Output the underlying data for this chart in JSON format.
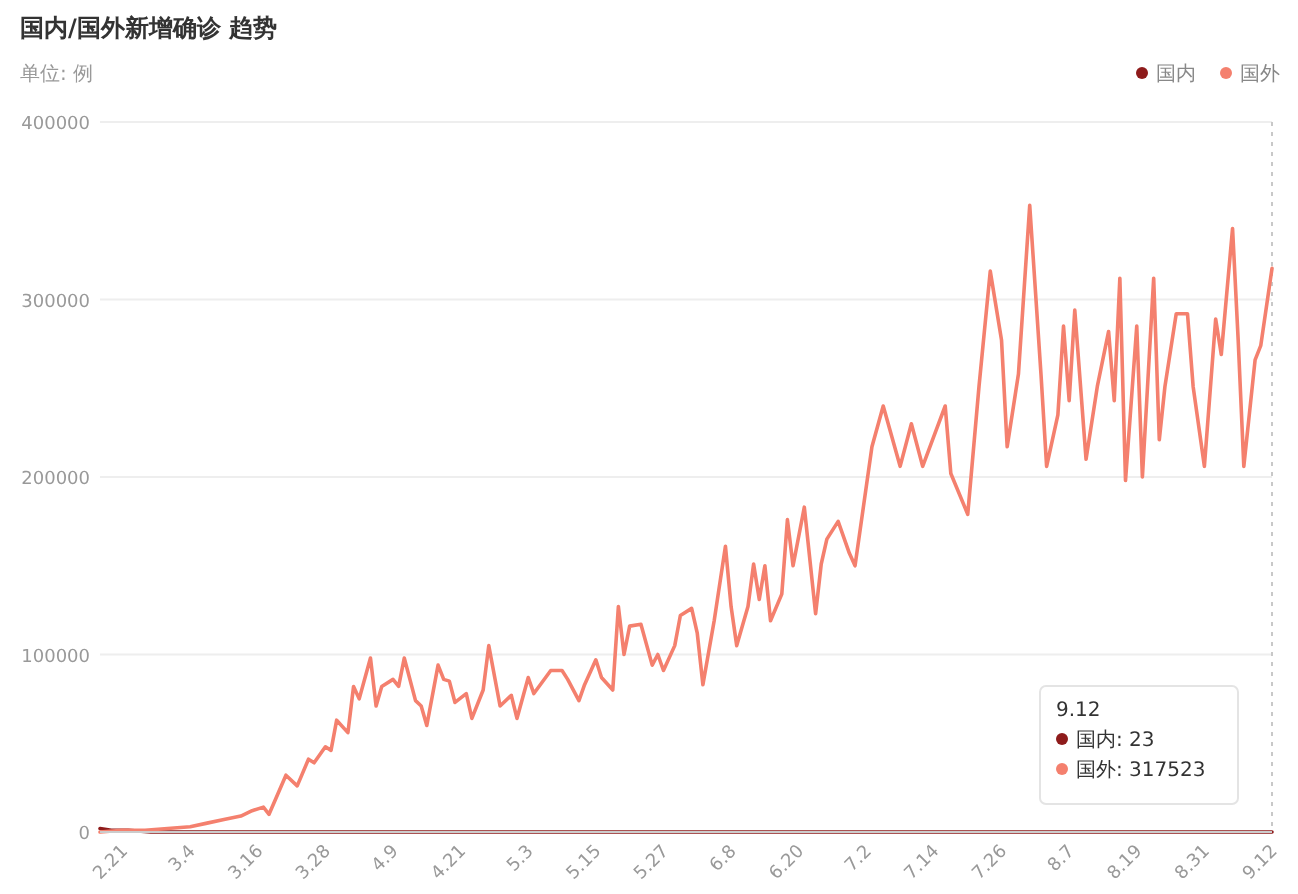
{
  "chart_data": {
    "type": "line",
    "title": "国内/国外新增确诊 趋势",
    "ylabel": "单位: 例",
    "xlim": [
      "--02-17",
      "--09-12"
    ],
    "ylim": [
      0,
      400000
    ],
    "yticks": [
      0,
      100000,
      200000,
      300000,
      400000
    ],
    "xticks": [
      {
        "value": "--02-21",
        "label": "2.21"
      },
      {
        "value": "--03-04",
        "label": "3.4"
      },
      {
        "value": "--03-16",
        "label": "3.16"
      },
      {
        "value": "--03-28",
        "label": "3.28"
      },
      {
        "value": "--04-09",
        "label": "4.9"
      },
      {
        "value": "--04-21",
        "label": "4.21"
      },
      {
        "value": "--05-03",
        "label": "5.3"
      },
      {
        "value": "--05-15",
        "label": "5.15"
      },
      {
        "value": "--05-27",
        "label": "5.27"
      },
      {
        "value": "--06-08",
        "label": "6.8"
      },
      {
        "value": "--06-20",
        "label": "6.20"
      },
      {
        "value": "--07-02",
        "label": "7.2"
      },
      {
        "value": "--07-14",
        "label": "7.14"
      },
      {
        "value": "--07-26",
        "label": "7.26"
      },
      {
        "value": "--08-07",
        "label": "8.7"
      },
      {
        "value": "--08-19",
        "label": "8.19"
      },
      {
        "value": "--08-31",
        "label": "8.31"
      },
      {
        "value": "--09-12",
        "label": "9.12"
      }
    ],
    "grid": "y",
    "legend": "top right",
    "ref_lines": [
      {
        "axis": "x",
        "value": "--09-12",
        "color": "#c8c8c8",
        "line_style": "dotted"
      }
    ],
    "annotations": [
      "9.12",
      "国内: 23",
      "国外: 317523"
    ],
    "series": [
      {
        "name": "国内",
        "color": "#8e1b1b",
        "x": [
          "--02-17",
          "--02-19",
          "--02-22",
          "--02-26",
          "--03-01",
          "--03-08",
          "--04-01",
          "--05-01",
          "--06-01",
          "--07-01",
          "--07-26",
          "--08-01",
          "--09-01",
          "--09-12"
        ],
        "values": [
          2000,
          1000,
          1000,
          0,
          0,
          0,
          0,
          0,
          0,
          0,
          0,
          0,
          0,
          23
        ]
      },
      {
        "name": "国外",
        "color": "#f4806e",
        "x": [
          "--02-17",
          "--02-21",
          "--02-25",
          "--02-29",
          "--03-04",
          "--03-07",
          "--03-10",
          "--03-13",
          "--03-15",
          "--03-17",
          "--03-18",
          "--03-21",
          "--03-23",
          "--03-25",
          "--03-26",
          "--03-28",
          "--03-29",
          "--03-30",
          "--04-01",
          "--04-02",
          "--04-03",
          "--04-05",
          "--04-06",
          "--04-07",
          "--04-09",
          "--04-10",
          "--04-11",
          "--04-13",
          "--04-14",
          "--04-15",
          "--04-17",
          "--04-18",
          "--04-19",
          "--04-20",
          "--04-22",
          "--04-23",
          "--04-25",
          "--04-26",
          "--04-28",
          "--04-30",
          "--05-01",
          "--05-03",
          "--05-04",
          "--05-07",
          "--05-09",
          "--05-10",
          "--05-12",
          "--05-13",
          "--05-15",
          "--05-16",
          "--05-18",
          "--05-19",
          "--05-20",
          "--05-21",
          "--05-23",
          "--05-25",
          "--05-26",
          "--05-27",
          "--05-29",
          "--05-30",
          "--06-01",
          "--06-02",
          "--06-03",
          "--06-05",
          "--06-07",
          "--06-08",
          "--06-09",
          "--06-11",
          "--06-12",
          "--06-13",
          "--06-14",
          "--06-15",
          "--06-17",
          "--06-18",
          "--06-19",
          "--06-21",
          "--06-23",
          "--06-24",
          "--06-25",
          "--06-27",
          "--06-29",
          "--06-30",
          "--07-03",
          "--07-05",
          "--07-08",
          "--07-10",
          "--07-12",
          "--07-14",
          "--07-16",
          "--07-17",
          "--07-20",
          "--07-22",
          "--07-24",
          "--07-26",
          "--07-27",
          "--07-29",
          "--07-31",
          "--08-02",
          "--08-03",
          "--08-05",
          "--08-06",
          "--08-07",
          "--08-08",
          "--08-10",
          "--08-12",
          "--08-14",
          "--08-15",
          "--08-16",
          "--08-17",
          "--08-19",
          "--08-20",
          "--08-22",
          "--08-23",
          "--08-24",
          "--08-26",
          "--08-28",
          "--08-29",
          "--08-31",
          "--09-02",
          "--09-03",
          "--09-05",
          "--09-06",
          "--09-07",
          "--09-09",
          "--09-10",
          "--09-12"
        ],
        "values": [
          0,
          1000,
          1000,
          2000,
          3000,
          5000,
          7000,
          9000,
          12000,
          14000,
          10000,
          32000,
          26000,
          41000,
          39000,
          48000,
          46000,
          63000,
          56000,
          82000,
          75000,
          98000,
          71000,
          82000,
          86000,
          82000,
          98000,
          74000,
          71000,
          60000,
          94000,
          86000,
          85000,
          73000,
          78000,
          64000,
          80000,
          105000,
          71000,
          77000,
          64000,
          87000,
          78000,
          91000,
          91000,
          86000,
          74000,
          83000,
          97000,
          87000,
          80000,
          127000,
          100000,
          116000,
          117000,
          94000,
          100000,
          91000,
          105000,
          122000,
          126000,
          112000,
          83000,
          119000,
          161000,
          127000,
          105000,
          127000,
          151000,
          131000,
          150000,
          119000,
          134000,
          176000,
          150000,
          183000,
          123000,
          151000,
          165000,
          175000,
          157000,
          150000,
          217000,
          240000,
          206000,
          230000,
          206000,
          223000,
          240000,
          202000,
          179000,
          251000,
          316000,
          277000,
          217000,
          258000,
          353000,
          258000,
          206000,
          235000,
          285000,
          243000,
          294000,
          210000,
          251000,
          282000,
          243000,
          312000,
          198000,
          285000,
          200000,
          312000,
          221000,
          251000,
          292000,
          292000,
          251000,
          206000,
          289000,
          269000,
          340000,
          277000,
          206000,
          266000,
          274000,
          317523
        ]
      }
    ]
  }
}
